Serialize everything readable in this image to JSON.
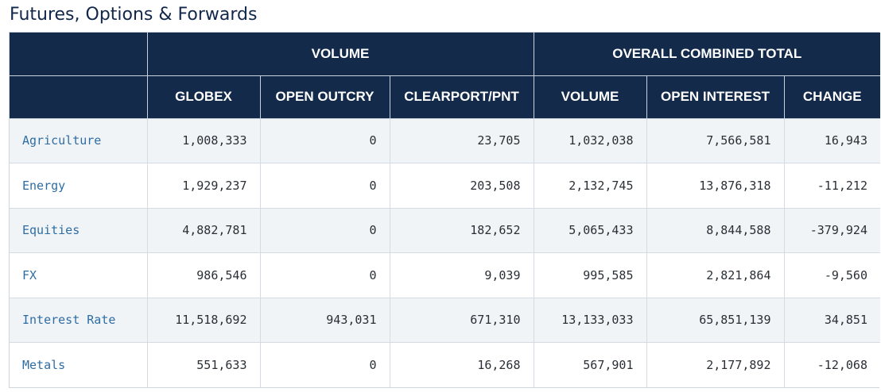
{
  "page_title": "Futures, Options & Forwards",
  "table": {
    "group_headers": {
      "sector": "",
      "volume": "VOLUME",
      "overall": "OVERALL COMBINED TOTAL"
    },
    "column_headers": {
      "sector": "",
      "globex": "GLOBEX",
      "open_outcry": "OPEN OUTCRY",
      "clearport": "CLEARPORT/PNT",
      "volume": "VOLUME",
      "open_interest": "OPEN INTEREST",
      "change": "CHANGE"
    },
    "rows": [
      {
        "sector": "Agriculture",
        "globex": "1,008,333",
        "open_outcry": "0",
        "clearport": "23,705",
        "volume": "1,032,038",
        "open_interest": "7,566,581",
        "change": "16,943"
      },
      {
        "sector": "Energy",
        "globex": "1,929,237",
        "open_outcry": "0",
        "clearport": "203,508",
        "volume": "2,132,745",
        "open_interest": "13,876,318",
        "change": "-11,212"
      },
      {
        "sector": "Equities",
        "globex": "4,882,781",
        "open_outcry": "0",
        "clearport": "182,652",
        "volume": "5,065,433",
        "open_interest": "8,844,588",
        "change": "-379,924"
      },
      {
        "sector": "FX",
        "globex": "986,546",
        "open_outcry": "0",
        "clearport": "9,039",
        "volume": "995,585",
        "open_interest": "2,821,864",
        "change": "-9,560"
      },
      {
        "sector": "Interest Rate",
        "globex": "11,518,692",
        "open_outcry": "943,031",
        "clearport": "671,310",
        "volume": "13,133,033",
        "open_interest": "65,851,139",
        "change": "34,851"
      },
      {
        "sector": "Metals",
        "globex": "551,633",
        "open_outcry": "0",
        "clearport": "16,268",
        "volume": "567,901",
        "open_interest": "2,177,892",
        "change": "-12,068"
      }
    ]
  },
  "colors": {
    "header_bg": "#132a4a",
    "header_text": "#ffffff",
    "link": "#2e6da4",
    "row_shade": "#f1f4f7"
  }
}
